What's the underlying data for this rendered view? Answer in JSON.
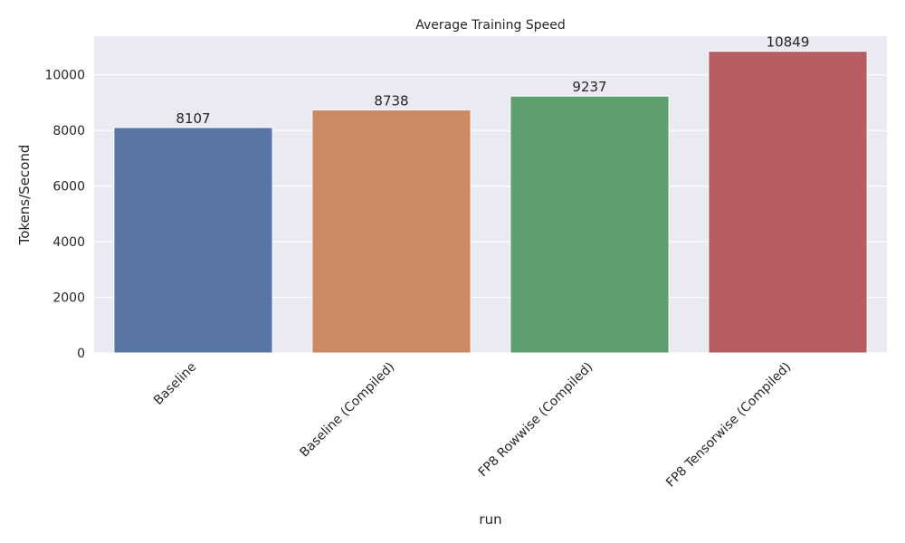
{
  "chart_data": {
    "type": "bar",
    "title": "Average Training Speed",
    "xlabel": "run",
    "ylabel": "Tokens/Second",
    "categories": [
      "Baseline",
      "Baseline (Compiled)",
      "FP8 Rowwise (Compiled)",
      "FP8 Tensorwise (Compiled)"
    ],
    "values": [
      8107,
      8738,
      9237,
      10849
    ],
    "data_labels": [
      "8107",
      "8738",
      "9237",
      "10849"
    ],
    "colors": [
      "#5975a4",
      "#cc8963",
      "#5f9e6e",
      "#b55d60"
    ],
    "ylim": [
      0,
      11391
    ],
    "yticks": [
      0,
      2000,
      4000,
      6000,
      8000,
      10000
    ],
    "ytick_labels": [
      "0",
      "2000",
      "4000",
      "6000",
      "8000",
      "10000"
    ],
    "grid": true,
    "background": "#eaeaf2",
    "x_tick_rotation_deg": 45
  }
}
